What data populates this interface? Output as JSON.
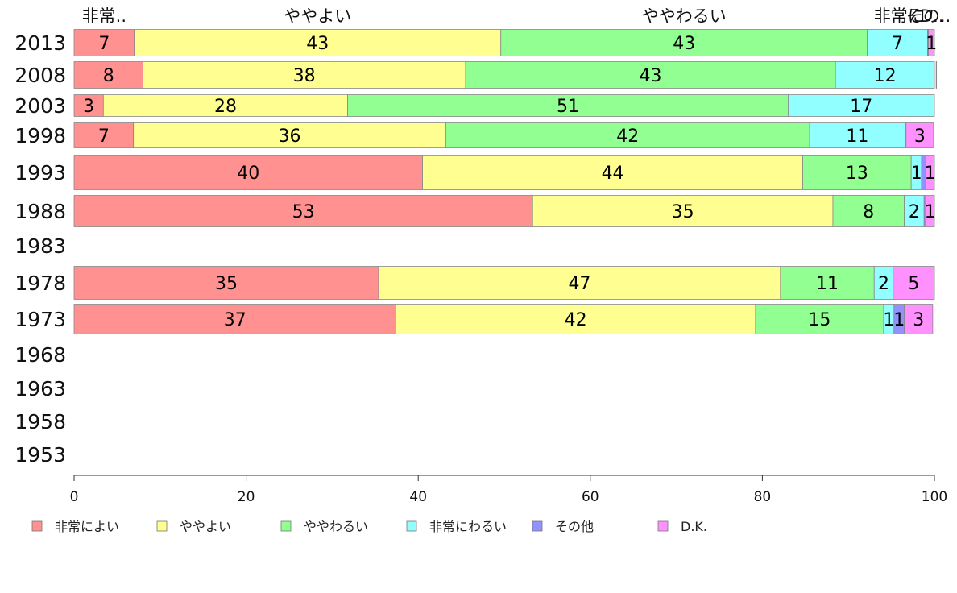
{
  "chart_data": {
    "type": "bar",
    "orientation": "horizontal",
    "stacked": true,
    "title": "",
    "xlabel": "",
    "ylabel": "",
    "xlim": [
      0,
      100
    ],
    "x_ticks": [
      0,
      20,
      40,
      60,
      80,
      100
    ],
    "grid": false,
    "legend_position": "bottom",
    "categories": [
      "2013",
      "2008",
      "2003",
      "1998",
      "1993",
      "1988",
      "1983",
      "1978",
      "1973",
      "1968",
      "1963",
      "1958",
      "1953"
    ],
    "series": [
      {
        "name": "非常によい",
        "color": "#ff9191",
        "values": [
          7,
          8,
          3.4,
          6.9,
          40.5,
          53.3,
          null,
          35.4,
          37.4,
          null,
          null,
          null,
          null
        ],
        "labels": [
          "7",
          "8",
          "3",
          "7",
          "40",
          "53",
          "",
          "35",
          "37",
          "",
          "",
          "",
          ""
        ]
      },
      {
        "name": "ややよい",
        "color": "#ffff91",
        "values": [
          42.6,
          37.5,
          28.4,
          36.3,
          44.2,
          34.9,
          null,
          46.7,
          41.8,
          null,
          null,
          null,
          null
        ],
        "labels": [
          "43",
          "38",
          "28",
          "36",
          "44",
          "35",
          "",
          "47",
          "42",
          "",
          "",
          "",
          ""
        ]
      },
      {
        "name": "ややわるい",
        "color": "#91ff91",
        "values": [
          42.6,
          43,
          51.2,
          42.3,
          12.6,
          8.3,
          null,
          10.9,
          14.9,
          null,
          null,
          null,
          null
        ],
        "labels": [
          "43",
          "43",
          "51",
          "42",
          "13",
          "8",
          "",
          "11",
          "15",
          "",
          "",
          "",
          ""
        ]
      },
      {
        "name": "非常にわるい",
        "color": "#91ffff",
        "values": [
          7,
          11.7,
          17,
          11.1,
          1.2,
          2.3,
          null,
          2.2,
          1.2,
          null,
          null,
          null,
          null
        ],
        "labels": [
          "7",
          "12",
          "17",
          "11",
          "1",
          "2",
          "",
          "2",
          "1",
          "",
          "",
          "",
          ""
        ]
      },
      {
        "name": "その他",
        "color": "#9191ff",
        "values": [
          0.1,
          0.1,
          0,
          0.1,
          0.5,
          0.2,
          null,
          0,
          1.2,
          null,
          null,
          null,
          null
        ],
        "labels": [
          "",
          "",
          "",
          "",
          "",
          "",
          "",
          "",
          "1",
          "",
          "",
          "",
          ""
        ]
      },
      {
        "name": "D.K.",
        "color": "#ff91ff",
        "values": [
          0.7,
          0,
          0,
          3.2,
          1,
          1.1,
          null,
          4.9,
          3.3,
          null,
          null,
          null,
          null
        ],
        "labels": [
          "1",
          "",
          "",
          "3",
          "1",
          "1",
          "",
          "5",
          "3",
          "",
          "",
          "",
          ""
        ]
      }
    ],
    "top_labels": [
      {
        "text": "非常..",
        "x": 3.5
      },
      {
        "text": "ややよい",
        "x": 28.3
      },
      {
        "text": "ややわるい",
        "x": 70.9
      },
      {
        "text": "非常に",
        "x": 95.9
      },
      {
        "text": "その..",
        "x": 99.3
      },
      {
        "text": "D..",
        "x": 99.7
      }
    ]
  }
}
